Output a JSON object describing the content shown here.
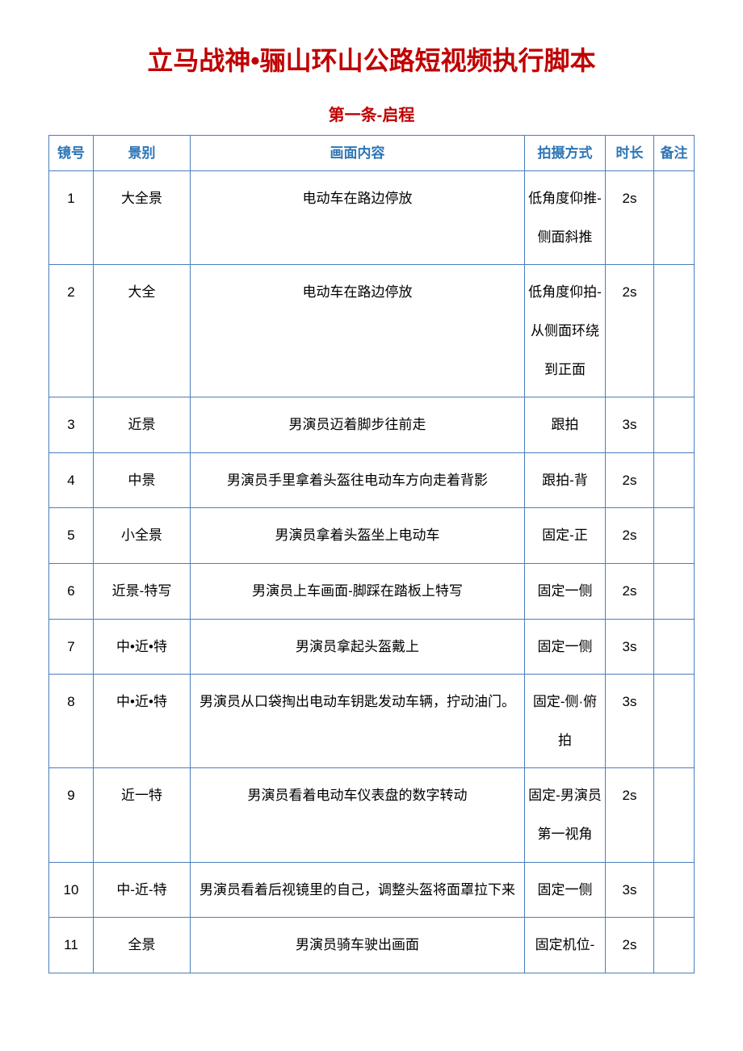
{
  "colors": {
    "title": "#c00000",
    "header_text": "#2e75b6",
    "border": "#4a7ebb",
    "cell_text": "#000000",
    "background": "#ffffff"
  },
  "title": "立马战神•骊山环山公路短视频执行脚本",
  "subtitle": "第一条-启程",
  "columns": [
    "镜号",
    "景别",
    "画面内容",
    "拍摄方式",
    "时长",
    "备注"
  ],
  "rows": [
    {
      "num": "1",
      "shot": "大全景",
      "content": "电动车在路边停放",
      "method": "低角度仰推-侧面斜推",
      "duration": "2s",
      "note": ""
    },
    {
      "num": "2",
      "shot": "大全",
      "content": "电动车在路边停放",
      "method": "低角度仰拍-从侧面环绕到正面",
      "duration": "2s",
      "note": ""
    },
    {
      "num": "3",
      "shot": "近景",
      "content": "男演员迈着脚步往前走",
      "method": "跟拍",
      "duration": "3s",
      "note": ""
    },
    {
      "num": "4",
      "shot": "中景",
      "content": "男演员手里拿着头盔往电动车方向走着背影",
      "method": "跟拍-背",
      "duration": "2s",
      "note": ""
    },
    {
      "num": "5",
      "shot": "小全景",
      "content": "男演员拿着头盔坐上电动车",
      "method": "固定-正",
      "duration": "2s",
      "note": ""
    },
    {
      "num": "6",
      "shot": "近景-特写",
      "content": "男演员上车画面-脚踩在踏板上特写",
      "method": "固定一侧",
      "duration": "2s",
      "note": ""
    },
    {
      "num": "7",
      "shot": "中•近•特",
      "content": "男演员拿起头盔戴上",
      "method": "固定一侧",
      "duration": "3s",
      "note": ""
    },
    {
      "num": "8",
      "shot": "中•近•特",
      "content": "男演员从口袋掏出电动车钥匙发动车辆，拧动油门。",
      "method": "固定-侧·俯拍",
      "duration": "3s",
      "note": ""
    },
    {
      "num": "9",
      "shot": "近一特",
      "content": "男演员看着电动车仪表盘的数字转动",
      "method": "固定-男演员第一视角",
      "duration": "2s",
      "note": ""
    },
    {
      "num": "10",
      "shot": "中-近-特",
      "content": "男演员看着后视镜里的自己，调整头盔将面罩拉下来",
      "method": "固定一侧",
      "duration": "3s",
      "note": ""
    },
    {
      "num": "11",
      "shot": "全景",
      "content": "男演员骑车驶出画面",
      "method": "固定机位-",
      "duration": "2s",
      "note": ""
    }
  ]
}
